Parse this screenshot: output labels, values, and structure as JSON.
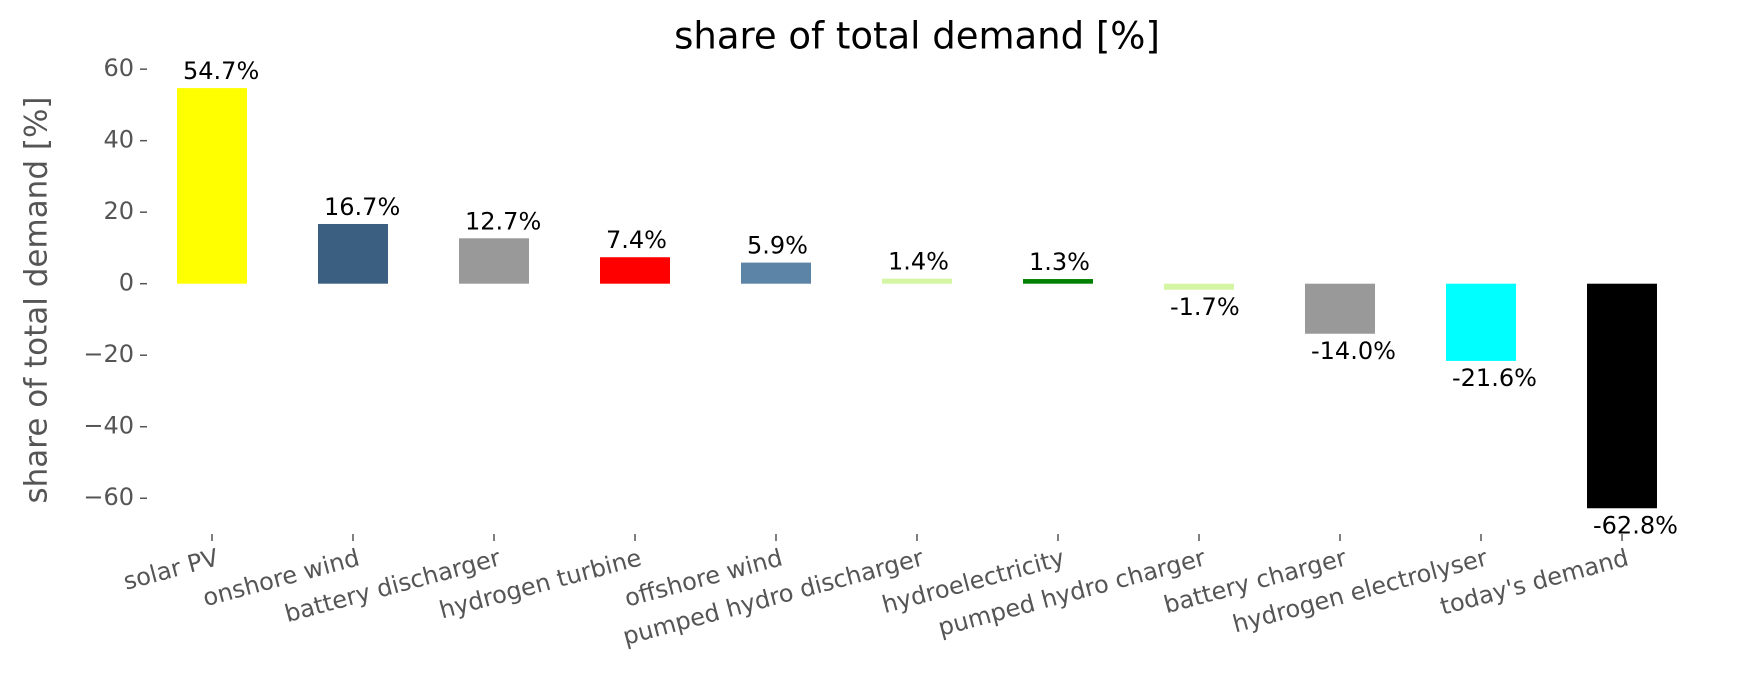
{
  "chart_data": {
    "type": "bar",
    "title": "share of total demand [%]",
    "y_label": "share of total demand [%]",
    "categories": [
      "solar PV",
      "onshore wind",
      "battery discharger",
      "hydrogen turbine",
      "offshore wind",
      "pumped hydro discharger",
      "hydroelectricity",
      "pumped hydro charger",
      "battery charger",
      "hydrogen electrolyser",
      "today's demand"
    ],
    "values": [
      54.7,
      16.7,
      12.7,
      7.4,
      5.9,
      1.4,
      1.3,
      -1.7,
      -14.0,
      -21.6,
      -62.8
    ],
    "value_labels": [
      "54.7%",
      "16.7%",
      "12.7%",
      "7.4%",
      "5.9%",
      "1.4%",
      "1.3%",
      "-1.7%",
      "-14.0%",
      "-21.6%",
      "-62.8%"
    ],
    "colors": [
      "#ffff00",
      "#3a5f80",
      "#999999",
      "#ff0000",
      "#5b84a6",
      "#d4f5a3",
      "#008000",
      "#d4f5a3",
      "#999999",
      "#00ffff",
      "#000000"
    ],
    "ylim": [
      -70,
      62
    ],
    "yticks": [
      {
        "value": -60,
        "label": "−60"
      },
      {
        "value": -40,
        "label": "−40"
      },
      {
        "value": -20,
        "label": "−20"
      },
      0,
      20,
      40,
      60
    ]
  }
}
